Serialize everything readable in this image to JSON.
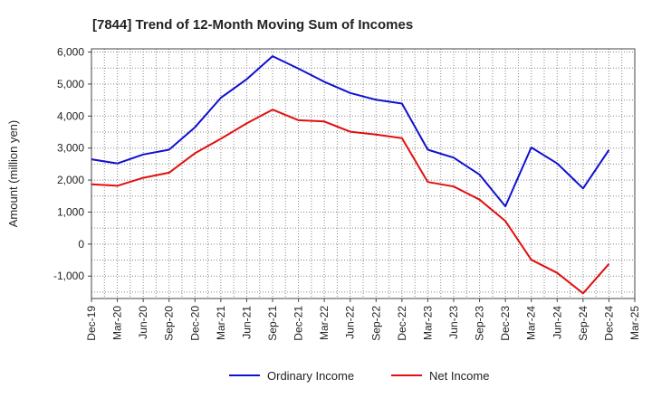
{
  "chart_data": {
    "type": "line",
    "title": "[7844]  Trend of 12-Month Moving Sum of Incomes",
    "xlabel": "",
    "ylabel": "Amount (million yen)",
    "ylim": [
      -1700,
      6100
    ],
    "yticks": [
      -1000,
      0,
      1000,
      2000,
      3000,
      4000,
      5000,
      6000
    ],
    "ytick_labels": [
      "-1,000",
      "0",
      "1,000",
      "2,000",
      "3,000",
      "4,000",
      "5,000",
      "6,000"
    ],
    "categories": [
      "Dec-19",
      "Mar-20",
      "Jun-20",
      "Sep-20",
      "Dec-20",
      "Mar-21",
      "Jun-21",
      "Sep-21",
      "Dec-21",
      "Mar-22",
      "Jun-22",
      "Sep-22",
      "Dec-22",
      "Mar-23",
      "Jun-23",
      "Sep-23",
      "Dec-23",
      "Mar-24",
      "Jun-24",
      "Sep-24",
      "Dec-24",
      "Mar-25"
    ],
    "grid": true,
    "legend_position": "bottom",
    "series": [
      {
        "name": "Ordinary Income",
        "color": "#1010d0",
        "values": [
          2650,
          2520,
          2800,
          2950,
          3650,
          4570,
          5150,
          5870,
          5480,
          5070,
          4720,
          4510,
          4390,
          2950,
          2700,
          2170,
          1180,
          3020,
          2520,
          1740,
          2940,
          null
        ]
      },
      {
        "name": "Net Income",
        "color": "#e01010",
        "values": [
          1870,
          1820,
          2070,
          2230,
          2840,
          3290,
          3770,
          4200,
          3870,
          3830,
          3510,
          3420,
          3310,
          1940,
          1800,
          1390,
          720,
          -490,
          -900,
          -1540,
          -620,
          null
        ]
      }
    ]
  }
}
